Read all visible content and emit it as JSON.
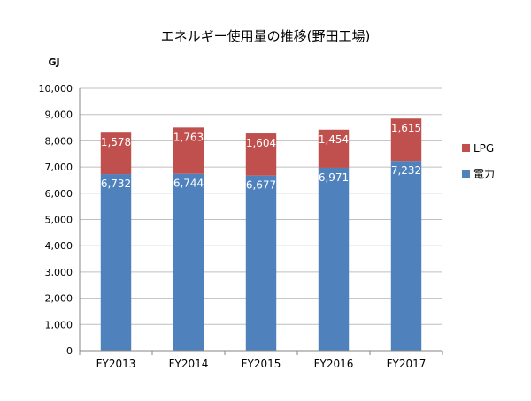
{
  "chart_data": {
    "type": "bar",
    "stacked": true,
    "title": "エネルギー使用量の推移(野田工場)",
    "ylabel": "GJ",
    "xlabel": "",
    "categories": [
      "FY2013",
      "FY2014",
      "FY2015",
      "FY2016",
      "FY2017"
    ],
    "ylim": [
      0,
      10000
    ],
    "yticks": [
      0,
      1000,
      2000,
      3000,
      4000,
      5000,
      6000,
      7000,
      8000,
      9000,
      10000
    ],
    "ytick_labels": [
      "0",
      "1,000",
      "2,000",
      "3,000",
      "4,000",
      "5,000",
      "6,000",
      "7,000",
      "8,000",
      "9,000",
      "10,000"
    ],
    "grid": true,
    "legend_position": "right",
    "series": [
      {
        "name": "電力",
        "color": "#4F81BD",
        "values": [
          6732,
          6744,
          6677,
          6971,
          7232
        ],
        "labels": [
          "6,732",
          "6,744",
          "6,677",
          "6,971",
          "7,232"
        ]
      },
      {
        "name": "LPG",
        "color": "#C0504D",
        "values": [
          1578,
          1763,
          1604,
          1454,
          1615
        ],
        "labels": [
          "1,578",
          "1,763",
          "1,604",
          "1,454",
          "1,615"
        ]
      }
    ],
    "legend_order": [
      1,
      0
    ]
  }
}
